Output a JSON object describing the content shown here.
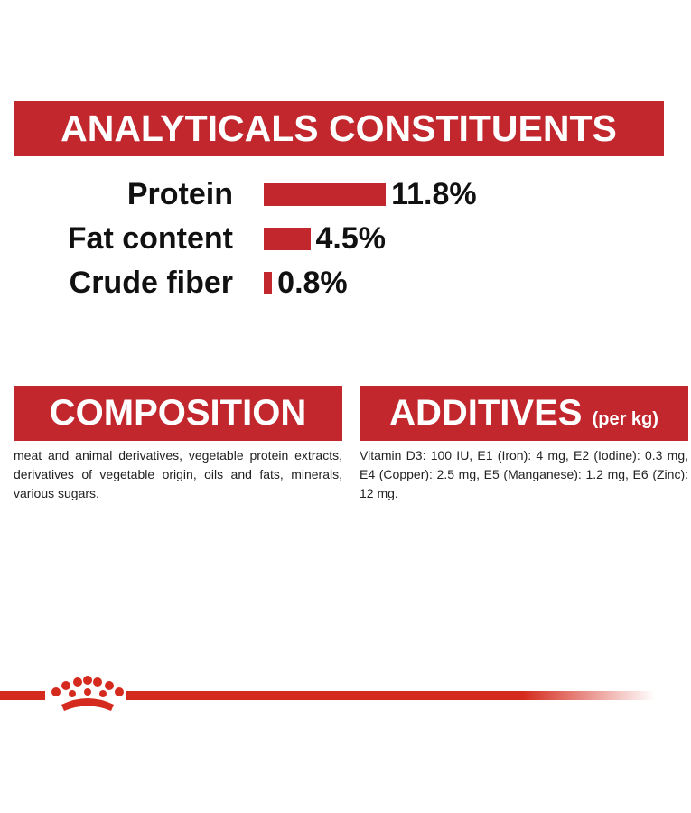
{
  "chart_data": {
    "type": "bar",
    "title": "ANALYTICALS CONSTITUENTS",
    "categories": [
      "Protein",
      "Fat content",
      "Crude fiber"
    ],
    "values": [
      11.8,
      4.5,
      0.8
    ],
    "value_labels": [
      "11.8%",
      "4.5%",
      "0.8%"
    ],
    "color": "#c1272d"
  },
  "composition": {
    "title": "COMPOSITION",
    "text": "meat and animal derivatives, vegetable protein extracts, derivatives of vegetable origin, oils and fats, minerals, various sugars."
  },
  "additives": {
    "title": "ADDITIVES",
    "subtitle": "(per kg)",
    "text": "Vitamin D3: 100 IU, E1 (Iron): 4 mg, E2 (Iodine): 0.3 mg, E4 (Copper): 2.5 mg, E5 (Manganese): 1.2 mg, E6 (Zinc): 12 mg."
  }
}
